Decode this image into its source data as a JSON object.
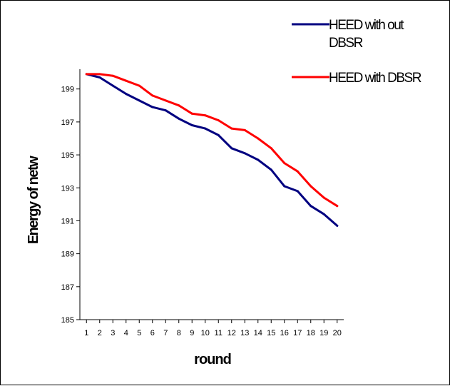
{
  "chart_data": {
    "type": "line",
    "title": "",
    "xlabel": "round",
    "ylabel": "Energy of netw",
    "x": [
      1,
      2,
      3,
      4,
      5,
      6,
      7,
      8,
      9,
      10,
      11,
      12,
      13,
      14,
      15,
      16,
      17,
      18,
      19,
      20
    ],
    "xlim": [
      0.5,
      20.5
    ],
    "ylim": [
      185,
      200.2
    ],
    "yticks": [
      185,
      187,
      189,
      191,
      193,
      195,
      197,
      199
    ],
    "xticks": [
      1,
      2,
      3,
      4,
      5,
      6,
      7,
      8,
      9,
      10,
      11,
      12,
      13,
      14,
      15,
      16,
      17,
      18,
      19,
      20
    ],
    "grid": false,
    "legend_position": "top-right",
    "series": [
      {
        "name": "HEED with out DBSR",
        "legend_lines": [
          "HEED with out",
          "DBSR"
        ],
        "color": "#000080",
        "values": [
          199.9,
          199.7,
          199.2,
          198.7,
          198.3,
          197.9,
          197.7,
          197.2,
          196.8,
          196.6,
          196.2,
          195.4,
          195.1,
          194.7,
          194.1,
          193.1,
          192.8,
          191.9,
          191.4,
          190.7
        ]
      },
      {
        "name": "HEED with DBSR",
        "legend_lines": [
          "HEED with DBSR"
        ],
        "color": "#ff0000",
        "values": [
          199.9,
          199.9,
          199.8,
          199.5,
          199.2,
          198.6,
          198.3,
          198.0,
          197.5,
          197.4,
          197.1,
          196.6,
          196.5,
          196.0,
          195.4,
          194.5,
          194.0,
          193.1,
          192.4,
          191.9
        ]
      }
    ]
  }
}
